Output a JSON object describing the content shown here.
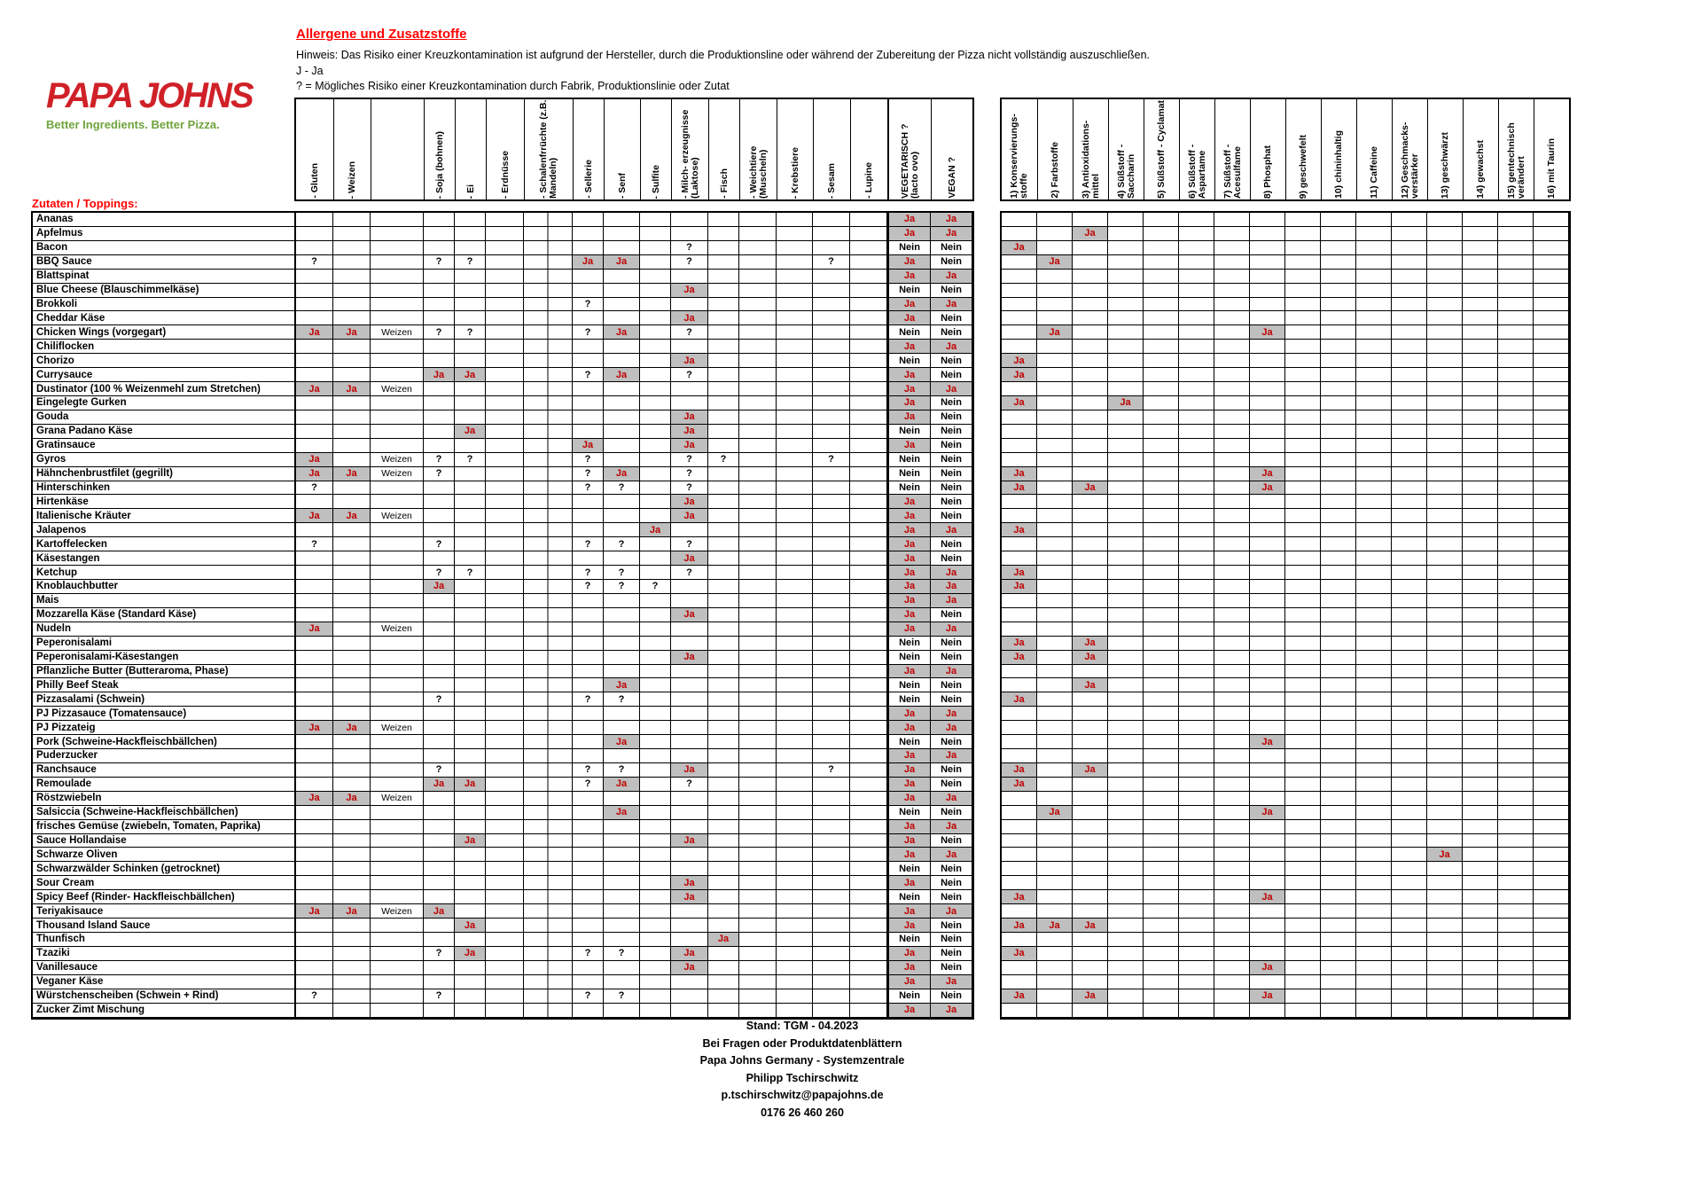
{
  "page": {
    "logo": {
      "brand": "PAPA JOHNS",
      "tagline": "Better Ingredients. Better Pizza."
    },
    "title": "Allergene und Zusatzstoffe",
    "notes": [
      "Hinweis: Das Risiko einer Kreuzkontamination ist aufgrund der Hersteller, durch die Produktionsline oder während der Zubereitung der Pizza nicht vollständig auszuschließen.",
      "J - Ja",
      "? = Mögliches Risiko einer Kreuzkontamination durch Fabrik, Produktionslinie oder Zutat"
    ],
    "section_label": "Zutaten / Toppings:"
  },
  "colors": {
    "accent_red": "#FF0000",
    "value_red": "#C00000",
    "cell_gray": "#BFBFBF",
    "logo_red": "#D02128",
    "logo_green": "#6FA33C"
  },
  "allergen_columns": [
    {
      "key": "gluten",
      "label": "- Gluten"
    },
    {
      "key": "weizen",
      "label": "- Weizen"
    },
    {
      "key": "weizen_art",
      "label": ""
    },
    {
      "key": "soja",
      "label": "- Soja (bohnen)"
    },
    {
      "key": "ei",
      "label": "- Ei"
    },
    {
      "key": "erdnuesse",
      "label": "- Erdnüsse"
    },
    {
      "key": "schalenfruechte",
      "label": "- Schalenfrrüchte (z.B. Mandeln)"
    },
    {
      "key": "sellerie",
      "label": "- Sellerie"
    },
    {
      "key": "senf",
      "label": "- Senf"
    },
    {
      "key": "sulfite",
      "label": "- Sulfite"
    },
    {
      "key": "milch",
      "label": "- Milch- erzeugnisse (Laktose)"
    },
    {
      "key": "fisch",
      "label": "- Fisch"
    },
    {
      "key": "weichtiere",
      "label": "- Weichtiere (Muscheln)"
    },
    {
      "key": "krebstiere",
      "label": "- Krebstiere"
    },
    {
      "key": "sesam",
      "label": "- Sesam"
    },
    {
      "key": "lupine",
      "label": "- Lupine"
    }
  ],
  "vegetarisch_label": "VEGETARISCH ? (lacto ovo)",
  "vegan_label": "VEGAN ?",
  "additive_columns": [
    {
      "key": "kons",
      "label": "1) Konservierungs- stoffe"
    },
    {
      "key": "farb",
      "label": "2) Farbstoffe"
    },
    {
      "key": "antiox",
      "label": "3) Antioxidations- mittel"
    },
    {
      "key": "saccharin",
      "label": "4) Süßstoff - Saccharin"
    },
    {
      "key": "cyclamat",
      "label": "5) Süßstoff - Cyclamat"
    },
    {
      "key": "aspartame",
      "label": "6) Süßstoff - Aspartame"
    },
    {
      "key": "acesulfame",
      "label": "7) Süßstoff - Acesulfame"
    },
    {
      "key": "phosphat",
      "label": "8) Phosphat"
    },
    {
      "key": "geschwefelt",
      "label": "9) geschwefelt"
    },
    {
      "key": "chinin",
      "label": "10) chininhaltig"
    },
    {
      "key": "caffeine",
      "label": "11) Caffeine"
    },
    {
      "key": "geschmack",
      "label": "12) Geschmacks- verstärker"
    },
    {
      "key": "geschwaerzt",
      "label": "13) geschwärzt"
    },
    {
      "key": "gewachst",
      "label": "14) gewachst"
    },
    {
      "key": "gentechnik",
      "label": "15) gentechnisch verändert"
    },
    {
      "key": "taurin",
      "label": "16) mit Taurin"
    }
  ],
  "rows": [
    {
      "name": "Ananas",
      "allergens": {},
      "vegetarisch": "Ja",
      "vegan": "Ja",
      "additives": {}
    },
    {
      "name": "Apfelmus",
      "allergens": {},
      "vegetarisch": "Ja",
      "vegan": "Ja",
      "additives": {
        "antiox": "Ja"
      }
    },
    {
      "name": "Bacon",
      "allergens": {
        "milch": "?"
      },
      "vegetarisch": "Nein",
      "vegan": "Nein",
      "additives": {
        "kons": "Ja"
      }
    },
    {
      "name": "BBQ Sauce",
      "allergens": {
        "gluten": "?",
        "soja": "?",
        "ei": "?",
        "sellerie": "Ja",
        "senf": "Ja",
        "milch": "?",
        "sesam": "?"
      },
      "vegetarisch": "Ja",
      "vegan": "Nein",
      "additives": {
        "farb": "Ja"
      }
    },
    {
      "name": "Blattspinat",
      "allergens": {},
      "vegetarisch": "Ja",
      "vegan": "Ja",
      "additives": {}
    },
    {
      "name": "Blue Cheese (Blauschimmelkäse)",
      "allergens": {
        "milch": "Ja"
      },
      "vegetarisch": "Nein",
      "vegan": "Nein",
      "additives": {}
    },
    {
      "name": "Brokkoli",
      "allergens": {
        "sellerie": "?"
      },
      "vegetarisch": "Ja",
      "vegan": "Ja",
      "additives": {}
    },
    {
      "name": "Cheddar Käse",
      "allergens": {
        "milch": "Ja"
      },
      "vegetarisch": "Ja",
      "vegan": "Nein",
      "additives": {}
    },
    {
      "name": "Chicken Wings (vorgegart)",
      "allergens": {
        "gluten": "Ja",
        "weizen": "Ja",
        "weizen_art": "Weizen",
        "soja": "?",
        "ei": "?",
        "sellerie": "?",
        "senf": "Ja",
        "milch": "?"
      },
      "vegetarisch": "Nein",
      "vegan": "Nein",
      "additives": {
        "farb": "Ja",
        "phosphat": "Ja"
      }
    },
    {
      "name": "Chiliflocken",
      "allergens": {},
      "vegetarisch": "Ja",
      "vegan": "Ja",
      "additives": {}
    },
    {
      "name": "Chorizo",
      "allergens": {
        "milch": "Ja"
      },
      "vegetarisch": "Nein",
      "vegan": "Nein",
      "additives": {
        "kons": "Ja"
      }
    },
    {
      "name": "Currysauce",
      "allergens": {
        "soja": "Ja",
        "ei": "Ja",
        "sellerie": "?",
        "senf": "Ja",
        "milch": "?"
      },
      "vegetarisch": "Ja",
      "vegan": "Nein",
      "additives": {
        "kons": "Ja"
      }
    },
    {
      "name": "Dustinator (100 % Weizenmehl zum Stretchen)",
      "allergens": {
        "gluten": "Ja",
        "weizen": "Ja",
        "weizen_art": "Weizen"
      },
      "vegetarisch": "Ja",
      "vegan": "Ja",
      "additives": {}
    },
    {
      "name": "Eingelegte Gurken",
      "allergens": {},
      "vegetarisch": "Ja",
      "vegan": "Nein",
      "additives": {
        "kons": "Ja",
        "saccharin": "Ja"
      }
    },
    {
      "name": "Gouda",
      "allergens": {
        "milch": "Ja"
      },
      "vegetarisch": "Ja",
      "vegan": "Nein",
      "additives": {}
    },
    {
      "name": "Grana Padano Käse",
      "allergens": {
        "ei": "Ja",
        "milch": "Ja"
      },
      "vegetarisch": "Nein",
      "vegan": "Nein",
      "additives": {}
    },
    {
      "name": "Gratinsauce",
      "allergens": {
        "sellerie": "Ja",
        "milch": "Ja"
      },
      "vegetarisch": "Ja",
      "vegan": "Nein",
      "additives": {}
    },
    {
      "name": "Gyros",
      "allergens": {
        "gluten": "Ja",
        "weizen_art": "Weizen",
        "soja": "?",
        "ei": "?",
        "sellerie": "?",
        "milch": "?",
        "fisch": "?",
        "sesam": "?"
      },
      "vegetarisch": "Nein",
      "vegan": "Nein",
      "additives": {}
    },
    {
      "name": "Hähnchenbrustfilet (gegrillt)",
      "allergens": {
        "gluten": "Ja",
        "weizen": "Ja",
        "weizen_art": "Weizen",
        "soja": "?",
        "sellerie": "?",
        "senf": "Ja",
        "milch": "?"
      },
      "vegetarisch": "Nein",
      "vegan": "Nein",
      "additives": {
        "kons": "Ja",
        "phosphat": "Ja"
      }
    },
    {
      "name": "Hinterschinken",
      "allergens": {
        "gluten": "?",
        "sellerie": "?",
        "senf": "?",
        "milch": "?"
      },
      "vegetarisch": "Nein",
      "vegan": "Nein",
      "additives": {
        "kons": "Ja",
        "antiox": "Ja",
        "phosphat": "Ja"
      }
    },
    {
      "name": "Hirtenkäse",
      "allergens": {
        "milch": "Ja"
      },
      "vegetarisch": "Ja",
      "vegan": "Nein",
      "additives": {}
    },
    {
      "name": "Italienische Kräuter",
      "allergens": {
        "gluten": "Ja",
        "weizen": "Ja",
        "weizen_art": "Weizen",
        "milch": "Ja"
      },
      "vegetarisch": "Ja",
      "vegan": "Nein",
      "additives": {}
    },
    {
      "name": "Jalapenos",
      "allergens": {
        "sulfite": "Ja"
      },
      "vegetarisch": "Ja",
      "vegan": "Ja",
      "additives": {
        "kons": "Ja"
      }
    },
    {
      "name": "Kartoffelecken",
      "allergens": {
        "gluten": "?",
        "soja": "?",
        "sellerie": "?",
        "senf": "?",
        "milch": "?"
      },
      "vegetarisch": "Ja",
      "vegan": "Nein",
      "additives": {}
    },
    {
      "name": "Käsestangen",
      "allergens": {
        "milch": "Ja"
      },
      "vegetarisch": "Ja",
      "vegan": "Nein",
      "additives": {}
    },
    {
      "name": "Ketchup",
      "allergens": {
        "soja": "?",
        "ei": "?",
        "sellerie": "?",
        "senf": "?",
        "milch": "?"
      },
      "vegetarisch": "Ja",
      "vegan": "Ja",
      "additives": {
        "kons": "Ja"
      }
    },
    {
      "name": "Knoblauchbutter",
      "allergens": {
        "soja": "Ja",
        "sellerie": "?",
        "senf": "?",
        "sulfite": "?"
      },
      "vegetarisch": "Ja",
      "vegan": "Ja",
      "additives": {
        "kons": "Ja"
      }
    },
    {
      "name": "Mais",
      "allergens": {},
      "vegetarisch": "Ja",
      "vegan": "Ja",
      "additives": {}
    },
    {
      "name": "Mozzarella Käse (Standard Käse)",
      "allergens": {
        "milch": "Ja"
      },
      "vegetarisch": "Ja",
      "vegan": "Nein",
      "additives": {}
    },
    {
      "name": "Nudeln",
      "allergens": {
        "gluten": "Ja",
        "weizen_art": "Weizen"
      },
      "vegetarisch": "Ja",
      "vegan": "Ja",
      "additives": {}
    },
    {
      "name": "Peperonisalami",
      "allergens": {},
      "vegetarisch": "Nein",
      "vegan": "Nein",
      "additives": {
        "kons": "Ja",
        "antiox": "Ja"
      }
    },
    {
      "name": "Peperonisalami-Käsestangen",
      "allergens": {
        "milch": "Ja"
      },
      "vegetarisch": "Nein",
      "vegan": "Nein",
      "additives": {
        "kons": "Ja",
        "antiox": "Ja"
      }
    },
    {
      "name": "Pflanzliche Butter (Butteraroma, Phase)",
      "allergens": {},
      "vegetarisch": "Ja",
      "vegan": "Ja",
      "additives": {}
    },
    {
      "name": "Philly Beef Steak",
      "allergens": {
        "senf": "Ja"
      },
      "vegetarisch": "Nein",
      "vegan": "Nein",
      "additives": {
        "antiox": "Ja"
      }
    },
    {
      "name": "Pizzasalami (Schwein)",
      "allergens": {
        "soja": "?",
        "sellerie": "?",
        "senf": "?"
      },
      "vegetarisch": "Nein",
      "vegan": "Nein",
      "additives": {
        "kons": "Ja"
      }
    },
    {
      "name": "PJ Pizzasauce (Tomatensauce)",
      "allergens": {},
      "vegetarisch": "Ja",
      "vegan": "Ja",
      "additives": {}
    },
    {
      "name": "PJ Pizzateig",
      "allergens": {
        "gluten": "Ja",
        "weizen": "Ja",
        "weizen_art": "Weizen"
      },
      "vegetarisch": "Ja",
      "vegan": "Ja",
      "additives": {}
    },
    {
      "name": "Pork (Schweine-Hackfleischbällchen)",
      "allergens": {
        "senf": "Ja"
      },
      "vegetarisch": "Nein",
      "vegan": "Nein",
      "additives": {
        "phosphat": "Ja"
      }
    },
    {
      "name": "Puderzucker",
      "allergens": {},
      "vegetarisch": "Ja",
      "vegan": "Ja",
      "additives": {}
    },
    {
      "name": "Ranchsauce",
      "allergens": {
        "soja": "?",
        "sellerie": "?",
        "senf": "?",
        "milch": "Ja",
        "sesam": "?"
      },
      "vegetarisch": "Ja",
      "vegan": "Nein",
      "additives": {
        "kons": "Ja",
        "antiox": "Ja"
      }
    },
    {
      "name": "Remoulade",
      "allergens": {
        "soja": "Ja",
        "ei": "Ja",
        "sellerie": "?",
        "senf": "Ja",
        "milch": "?"
      },
      "vegetarisch": "Ja",
      "vegan": "Nein",
      "additives": {
        "kons": "Ja"
      }
    },
    {
      "name": "Röstzwiebeln",
      "allergens": {
        "gluten": "Ja",
        "weizen": "Ja",
        "weizen_art": "Weizen"
      },
      "vegetarisch": "Ja",
      "vegan": "Ja",
      "additives": {}
    },
    {
      "name": "Salsiccia (Schweine-Hackfleischbällchen)",
      "allergens": {
        "senf": "Ja"
      },
      "vegetarisch": "Nein",
      "vegan": "Nein",
      "additives": {
        "farb": "Ja",
        "phosphat": "Ja"
      }
    },
    {
      "name": "frisches Gemüse (zwiebeln, Tomaten, Paprika)",
      "allergens": {},
      "vegetarisch": "Ja",
      "vegan": "Ja",
      "additives": {}
    },
    {
      "name": "Sauce Hollandaise",
      "allergens": {
        "ei": "Ja",
        "milch": "Ja"
      },
      "vegetarisch": "Ja",
      "vegan": "Nein",
      "additives": {}
    },
    {
      "name": "Schwarze Oliven",
      "allergens": {},
      "vegetarisch": "Ja",
      "vegan": "Ja",
      "additives": {
        "geschwaerzt": "Ja"
      }
    },
    {
      "name": "Schwarzwälder Schinken (getrocknet)",
      "allergens": {},
      "vegetarisch": "Nein",
      "vegan": "Nein",
      "additives": {}
    },
    {
      "name": "Sour Cream",
      "allergens": {
        "milch": "Ja"
      },
      "vegetarisch": "Ja",
      "vegan": "Nein",
      "additives": {}
    },
    {
      "name": "Spicy Beef (Rinder- Hackfleischbällchen)",
      "allergens": {
        "milch": "Ja"
      },
      "vegetarisch": "Nein",
      "vegan": "Nein",
      "additives": {
        "kons": "Ja",
        "phosphat": "Ja"
      }
    },
    {
      "name": "Teriyakisauce",
      "allergens": {
        "gluten": "Ja",
        "weizen": "Ja",
        "weizen_art": "Weizen",
        "soja": "Ja"
      },
      "vegetarisch": "Ja",
      "vegan": "Ja",
      "additives": {}
    },
    {
      "name": "Thousand Island Sauce",
      "allergens": {
        "ei": "Ja"
      },
      "vegetarisch": "Ja",
      "vegan": "Nein",
      "additives": {
        "kons": "Ja",
        "farb": "Ja",
        "antiox": "Ja"
      }
    },
    {
      "name": "Thunfisch",
      "allergens": {
        "fisch": "Ja"
      },
      "vegetarisch": "Nein",
      "vegan": "Nein",
      "additives": {}
    },
    {
      "name": "Tzaziki",
      "allergens": {
        "soja": "?",
        "ei": "Ja",
        "sellerie": "?",
        "senf": "?",
        "milch": "Ja"
      },
      "vegetarisch": "Ja",
      "vegan": "Nein",
      "additives": {
        "kons": "Ja"
      }
    },
    {
      "name": "Vanillesauce",
      "allergens": {
        "milch": "Ja"
      },
      "vegetarisch": "Ja",
      "vegan": "Nein",
      "additives": {
        "phosphat": "Ja"
      }
    },
    {
      "name": "Veganer Käse",
      "allergens": {},
      "vegetarisch": "Ja",
      "vegan": "Ja",
      "additives": {}
    },
    {
      "name": "Würstchenscheiben (Schwein + Rind)",
      "allergens": {
        "gluten": "?",
        "soja": "?",
        "sellerie": "?",
        "senf": "?"
      },
      "vegetarisch": "Nein",
      "vegan": "Nein",
      "additives": {
        "kons": "Ja",
        "antiox": "Ja",
        "phosphat": "Ja"
      }
    },
    {
      "name": "Zucker Zimt Mischung",
      "allergens": {},
      "vegetarisch": "Ja",
      "vegan": "Ja",
      "additives": {}
    }
  ],
  "footer": {
    "lines": [
      "Stand: TGM - 04.2023",
      "Bei Fragen oder Produktdatenblättern",
      "Papa Johns Germany - Systemzentrale",
      "Philipp Tschirschwitz",
      "p.tschirschwitz@papajohns.de",
      "0176 26 460 260"
    ]
  }
}
